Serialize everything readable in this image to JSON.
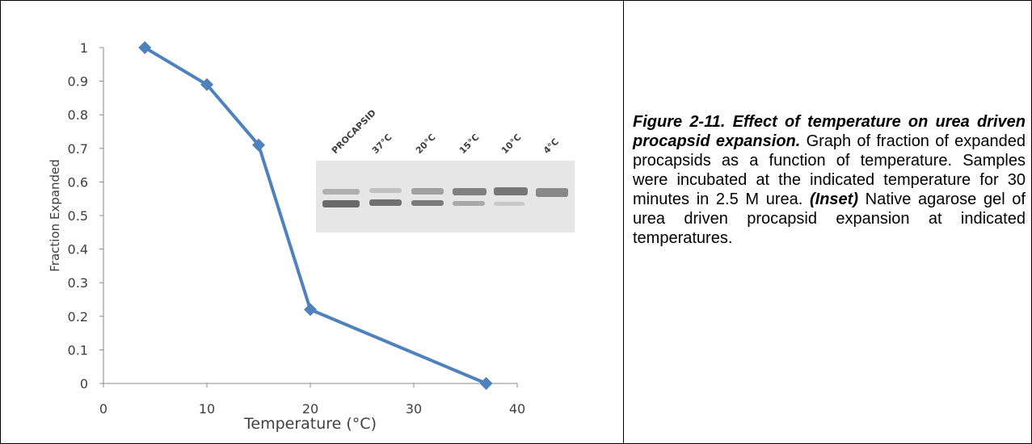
{
  "chart_data": {
    "type": "line",
    "x": [
      4,
      10,
      15,
      20,
      37
    ],
    "series": [
      {
        "name": "Fraction Expanded",
        "color": "#4f81bd",
        "values": [
          1,
          0.89,
          0.71,
          0.22,
          0
        ]
      }
    ],
    "xlabel": "Temperature (°C)",
    "ylabel": "Fraction Expanded",
    "xlim": [
      0,
      40
    ],
    "xticks": [
      0,
      10,
      20,
      30,
      40
    ],
    "ylim": [
      0,
      1
    ],
    "yticks": [
      0,
      0.1,
      0.2,
      0.3,
      0.4,
      0.5,
      0.6,
      0.7,
      0.8,
      0.9,
      1
    ],
    "grid": false
  },
  "inset": {
    "lane_labels": [
      "PROCAPSID",
      "37°C",
      "20°C",
      "15°C",
      "10°C",
      "4°C"
    ]
  },
  "caption": {
    "title": "Figure 2-11. Effect of temperature on urea driven procapsid expansion.",
    "body": " Graph of fraction of expanded procapsids as a function of temperature. Samples were incubated at the indicated temperature for 30 minutes in 2.5 M urea. ",
    "inset_label": "(Inset)",
    "inset_text": " Native agarose gel of urea driven procapsid expansion at indicated temperatures."
  }
}
